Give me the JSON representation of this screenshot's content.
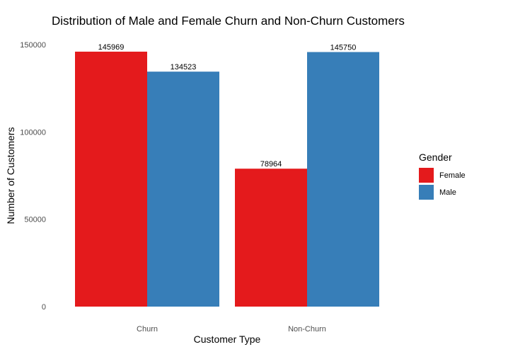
{
  "chart_data": {
    "type": "bar",
    "title": "Distribution of Male and Female Churn and Non-Churn Customers",
    "xlabel": "Customer Type",
    "ylabel": "Number of Customers",
    "categories": [
      "Churn",
      "Non-Churn"
    ],
    "series": [
      {
        "name": "Female",
        "values": [
          145969,
          78964
        ],
        "color": "#e41a1c"
      },
      {
        "name": "Male",
        "values": [
          134523,
          145750
        ],
        "color": "#377eb8"
      }
    ],
    "ylim": [
      0,
      150000
    ],
    "yticks": [
      0,
      50000,
      100000,
      150000
    ],
    "ytick_labels": [
      "0",
      "50000",
      "100000",
      "150000"
    ],
    "data_labels": [
      [
        "145969",
        "78964"
      ],
      [
        "134523",
        "145750"
      ]
    ],
    "legend": {
      "title": "Gender",
      "position": "right"
    },
    "grid": false
  }
}
